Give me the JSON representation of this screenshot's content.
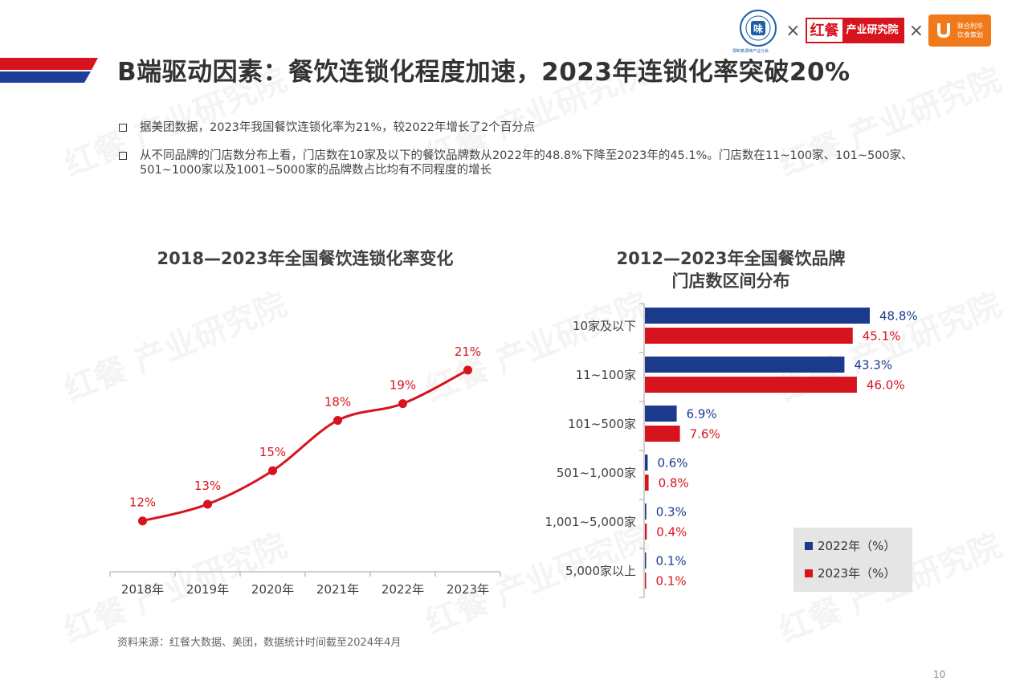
{
  "header": {
    "seal_caption": "鄂制菜调味产业分会",
    "hongcan_logo_main": "红餐",
    "hongcan_logo_sub": "产业研究院",
    "unilever_text_line1": "联合利华",
    "unilever_text_line2": "饮食策划",
    "separator": "×"
  },
  "page_title": "B端驱动因素：餐饮连锁化程度加速，2023年连锁化率突破20%",
  "bullets": [
    "据美团数据，2023年我国餐饮连锁化率为21%，较2022年增长了2个百分点",
    "从不同品牌的门店数分布上看，门店数在10家及以下的餐饮品牌数从2022年的48.8%下降至2023年的45.1%。门店数在11~100家、101~500家、501~1000家以及1001~5000家的品牌数占比均有不同程度的增长"
  ],
  "watermark": "红餐 产业研究院",
  "source": "资料来源：红餐大数据、美团，数据统计时间截至2024年4月",
  "page_number": "10",
  "colors": {
    "red": "#d7141e",
    "blue": "#1b3a8c",
    "title_bar_blue": "#1f3d99"
  },
  "chart_data": [
    {
      "type": "line",
      "title": "2018—2023年全国餐饮连锁化率变化",
      "categories": [
        "2018年",
        "2019年",
        "2020年",
        "2021年",
        "2022年",
        "2023年"
      ],
      "values": [
        12,
        13,
        15,
        18,
        19,
        21
      ],
      "data_labels": [
        "12%",
        "13%",
        "15%",
        "18%",
        "19%",
        "21%"
      ],
      "color": "#d7141e",
      "grid": false
    },
    {
      "type": "bar",
      "orientation": "horizontal",
      "title_line1": "2012—2023年全国餐饮品牌",
      "title_line2": "门店数区间分布",
      "categories": [
        "10家及以下",
        "11~100家",
        "101~500家",
        "501~1,000家",
        "1,001~5,000家",
        "5,000家以上"
      ],
      "series": [
        {
          "name": "2022年（%）",
          "color": "#1b3a8c",
          "values": [
            48.8,
            43.3,
            6.9,
            0.6,
            0.3,
            0.1
          ],
          "labels": [
            "48.8%",
            "43.3%",
            "6.9%",
            "0.6%",
            "0.3%",
            "0.1%"
          ]
        },
        {
          "name": "2023年（%）",
          "color": "#d7141e",
          "values": [
            45.1,
            46.0,
            7.6,
            0.8,
            0.4,
            0.1
          ],
          "labels": [
            "45.1%",
            "46.0%",
            "7.6%",
            "0.8%",
            "0.4%",
            "0.1%"
          ]
        }
      ],
      "legend_position": "bottom-right",
      "grid": false
    }
  ]
}
